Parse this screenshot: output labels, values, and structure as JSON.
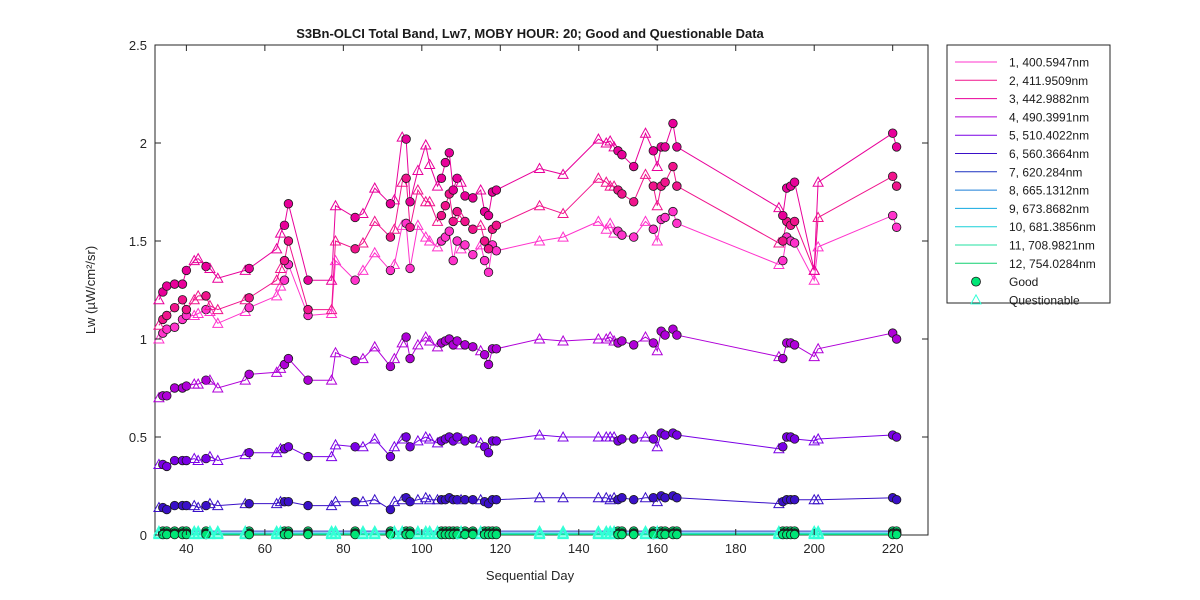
{
  "chart_data": {
    "type": "line",
    "title": "S3Bn-OLCI Total Band,  Lw7, MOBY HOUR: 20;  Good and Questionable Data",
    "xlabel": "Sequential Day",
    "ylabel": "Lw (µW/cm²/sr)",
    "xlim": [
      32,
      229
    ],
    "ylim": [
      0,
      2.5
    ],
    "xticks": [
      40,
      60,
      80,
      100,
      120,
      140,
      160,
      180,
      200,
      220
    ],
    "yticks": [
      0,
      0.5,
      1,
      1.5,
      2,
      2.5
    ],
    "ytick_labels": [
      "0",
      "0.5",
      "1",
      "1.5",
      "2",
      "2.5"
    ],
    "grid": false,
    "legend_position": "outside-right",
    "marker_legend": [
      {
        "label": "Good",
        "marker": "circle",
        "color": "#00e676"
      },
      {
        "label": "Questionable",
        "marker": "triangle",
        "color": "#33ffd6"
      }
    ],
    "x": [
      33,
      34,
      35,
      37,
      39,
      40,
      42,
      43,
      45,
      46,
      48,
      55,
      56,
      63,
      64,
      65,
      66,
      71,
      77,
      78,
      83,
      85,
      88,
      92,
      93,
      95,
      96,
      97,
      99,
      101,
      102,
      104,
      105,
      106,
      107,
      108,
      109,
      110,
      111,
      113,
      115,
      116,
      117,
      118,
      119,
      130,
      136,
      145,
      147,
      148,
      149,
      150,
      151,
      154,
      157,
      159,
      160,
      161,
      162,
      164,
      165,
      191,
      192,
      193,
      194,
      195,
      200,
      201,
      220,
      221
    ],
    "series": [
      {
        "name": "1, 400.5947nm",
        "color": "#ff33cc",
        "values": [
          1.0,
          1.03,
          1.05,
          1.06,
          1.1,
          1.12,
          1.12,
          1.13,
          1.15,
          1.14,
          1.08,
          1.14,
          1.16,
          1.22,
          1.27,
          1.3,
          1.38,
          1.12,
          1.13,
          1.4,
          1.3,
          1.35,
          1.44,
          1.35,
          1.38,
          1.58,
          1.59,
          1.36,
          1.58,
          1.52,
          1.5,
          1.47,
          1.5,
          1.52,
          1.55,
          1.4,
          1.5,
          1.46,
          1.48,
          1.43,
          1.48,
          1.4,
          1.34,
          1.48,
          1.45,
          1.5,
          1.52,
          1.6,
          1.56,
          1.59,
          1.54,
          1.55,
          1.53,
          1.52,
          1.6,
          1.56,
          1.5,
          1.61,
          1.62,
          1.65,
          1.59,
          1.38,
          1.4,
          1.52,
          1.5,
          1.49,
          1.3,
          1.47,
          1.63,
          1.57
        ]
      },
      {
        "name": "2, 411.9509nm",
        "color": "#f0148c",
        "values": [
          1.07,
          1.1,
          1.12,
          1.16,
          1.2,
          1.15,
          1.2,
          1.22,
          1.22,
          1.17,
          1.15,
          1.2,
          1.21,
          1.3,
          1.36,
          1.4,
          1.5,
          1.15,
          1.15,
          1.5,
          1.46,
          1.49,
          1.6,
          1.52,
          1.56,
          1.8,
          1.82,
          1.57,
          1.76,
          1.7,
          1.7,
          1.6,
          1.63,
          1.68,
          1.74,
          1.6,
          1.65,
          1.62,
          1.6,
          1.56,
          1.58,
          1.5,
          1.46,
          1.56,
          1.58,
          1.68,
          1.64,
          1.82,
          1.8,
          1.78,
          1.78,
          1.76,
          1.74,
          1.7,
          1.84,
          1.78,
          1.68,
          1.78,
          1.8,
          1.88,
          1.78,
          1.49,
          1.5,
          1.6,
          1.58,
          1.6,
          1.35,
          1.62,
          1.83,
          1.78
        ]
      },
      {
        "name": "3, 442.9882nm",
        "color": "#e8009a",
        "values": [
          1.2,
          1.24,
          1.27,
          1.28,
          1.28,
          1.35,
          1.4,
          1.41,
          1.37,
          1.36,
          1.31,
          1.35,
          1.36,
          1.46,
          1.54,
          1.58,
          1.69,
          1.3,
          1.3,
          1.68,
          1.62,
          1.64,
          1.77,
          1.69,
          1.71,
          2.03,
          2.02,
          1.7,
          1.86,
          1.99,
          1.89,
          1.78,
          1.82,
          1.9,
          1.95,
          1.76,
          1.82,
          1.8,
          1.73,
          1.72,
          1.76,
          1.65,
          1.63,
          1.75,
          1.76,
          1.87,
          1.84,
          2.02,
          2.0,
          2.01,
          1.98,
          1.96,
          1.94,
          1.88,
          2.05,
          1.96,
          1.88,
          1.98,
          1.98,
          2.1,
          1.98,
          1.67,
          1.63,
          1.77,
          1.78,
          1.8,
          1.35,
          1.8,
          2.05,
          1.98
        ]
      },
      {
        "name": "4, 490.3991nm",
        "color": "#b000d8",
        "values": [
          0.7,
          0.71,
          0.71,
          0.75,
          0.75,
          0.76,
          0.77,
          0.77,
          0.79,
          0.79,
          0.75,
          0.79,
          0.82,
          0.83,
          0.85,
          0.87,
          0.9,
          0.79,
          0.79,
          0.93,
          0.89,
          0.9,
          0.96,
          0.86,
          0.9,
          0.98,
          1.01,
          0.9,
          0.97,
          1.01,
          0.99,
          0.96,
          0.98,
          0.99,
          1.0,
          0.97,
          0.99,
          0.97,
          0.97,
          0.96,
          0.94,
          0.92,
          0.87,
          0.95,
          0.95,
          1.0,
          0.99,
          1.0,
          1.0,
          1.01,
          0.99,
          0.98,
          0.99,
          0.97,
          1.01,
          0.98,
          0.94,
          1.04,
          1.02,
          1.05,
          1.02,
          0.91,
          0.9,
          0.98,
          0.98,
          0.97,
          0.91,
          0.95,
          1.03,
          1.0
        ]
      },
      {
        "name": "5, 510.4022nm",
        "color": "#7a00e6",
        "values": [
          0.36,
          0.36,
          0.35,
          0.38,
          0.38,
          0.38,
          0.39,
          0.38,
          0.39,
          0.4,
          0.38,
          0.41,
          0.42,
          0.42,
          0.44,
          0.44,
          0.45,
          0.4,
          0.4,
          0.46,
          0.45,
          0.45,
          0.49,
          0.4,
          0.45,
          0.49,
          0.5,
          0.45,
          0.48,
          0.5,
          0.49,
          0.47,
          0.48,
          0.49,
          0.5,
          0.48,
          0.5,
          0.49,
          0.48,
          0.49,
          0.47,
          0.45,
          0.42,
          0.48,
          0.48,
          0.51,
          0.5,
          0.5,
          0.5,
          0.5,
          0.5,
          0.48,
          0.49,
          0.49,
          0.5,
          0.49,
          0.45,
          0.52,
          0.51,
          0.52,
          0.51,
          0.44,
          0.45,
          0.5,
          0.5,
          0.49,
          0.48,
          0.49,
          0.51,
          0.5
        ]
      },
      {
        "name": "6, 560.3664nm",
        "color": "#3a10c8",
        "values": [
          0.14,
          0.14,
          0.13,
          0.15,
          0.15,
          0.15,
          0.15,
          0.14,
          0.15,
          0.16,
          0.15,
          0.16,
          0.16,
          0.16,
          0.17,
          0.17,
          0.17,
          0.15,
          0.15,
          0.17,
          0.17,
          0.17,
          0.18,
          0.13,
          0.17,
          0.18,
          0.19,
          0.17,
          0.18,
          0.19,
          0.18,
          0.18,
          0.18,
          0.18,
          0.19,
          0.18,
          0.18,
          0.18,
          0.18,
          0.18,
          0.18,
          0.17,
          0.16,
          0.18,
          0.18,
          0.19,
          0.19,
          0.19,
          0.19,
          0.18,
          0.19,
          0.18,
          0.19,
          0.18,
          0.19,
          0.19,
          0.17,
          0.2,
          0.19,
          0.2,
          0.19,
          0.16,
          0.17,
          0.18,
          0.18,
          0.18,
          0.18,
          0.18,
          0.19,
          0.18
        ]
      },
      {
        "name": "7,  620.284nm",
        "color": "#1a30c0",
        "values": [
          0.02,
          0.02,
          0.02,
          0.02,
          0.02,
          0.02,
          0.02,
          0.02,
          0.02,
          0.02,
          0.02,
          0.02,
          0.02,
          0.02,
          0.02,
          0.02,
          0.02,
          0.02,
          0.02,
          0.02,
          0.02,
          0.02,
          0.02,
          0.02,
          0.02,
          0.02,
          0.02,
          0.02,
          0.02,
          0.02,
          0.02,
          0.02,
          0.02,
          0.02,
          0.02,
          0.02,
          0.02,
          0.02,
          0.02,
          0.02,
          0.02,
          0.02,
          0.02,
          0.02,
          0.02,
          0.02,
          0.02,
          0.02,
          0.02,
          0.02,
          0.02,
          0.02,
          0.02,
          0.02,
          0.02,
          0.02,
          0.02,
          0.02,
          0.02,
          0.02,
          0.02,
          0.02,
          0.02,
          0.02,
          0.02,
          0.02,
          0.02,
          0.02,
          0.02,
          0.02
        ]
      },
      {
        "name": "8, 665.1312nm",
        "color": "#1a7ed8",
        "values": [
          0.01,
          0.01,
          0.01,
          0.01,
          0.01,
          0.01,
          0.01,
          0.01,
          0.01,
          0.01,
          0.01,
          0.01,
          0.01,
          0.01,
          0.01,
          0.01,
          0.01,
          0.01,
          0.01,
          0.01,
          0.01,
          0.01,
          0.01,
          0.01,
          0.01,
          0.01,
          0.01,
          0.01,
          0.01,
          0.01,
          0.01,
          0.01,
          0.01,
          0.01,
          0.01,
          0.01,
          0.01,
          0.01,
          0.01,
          0.01,
          0.01,
          0.01,
          0.01,
          0.01,
          0.01,
          0.01,
          0.01,
          0.01,
          0.01,
          0.01,
          0.01,
          0.01,
          0.01,
          0.01,
          0.01,
          0.01,
          0.01,
          0.01,
          0.01,
          0.01,
          0.01,
          0.01,
          0.01,
          0.01,
          0.01,
          0.01,
          0.01,
          0.01,
          0.01,
          0.01
        ]
      },
      {
        "name": "9, 673.8682nm",
        "color": "#10a8e0",
        "values": [
          0.01,
          0.01,
          0.01,
          0.01,
          0.01,
          0.01,
          0.01,
          0.01,
          0.01,
          0.01,
          0.01,
          0.01,
          0.01,
          0.01,
          0.01,
          0.01,
          0.01,
          0.01,
          0.01,
          0.01,
          0.01,
          0.01,
          0.01,
          0.01,
          0.01,
          0.01,
          0.01,
          0.01,
          0.01,
          0.01,
          0.01,
          0.01,
          0.01,
          0.01,
          0.01,
          0.01,
          0.01,
          0.01,
          0.01,
          0.01,
          0.01,
          0.01,
          0.01,
          0.01,
          0.01,
          0.01,
          0.01,
          0.01,
          0.01,
          0.01,
          0.01,
          0.01,
          0.01,
          0.01,
          0.01,
          0.01,
          0.01,
          0.01,
          0.01,
          0.01,
          0.01,
          0.01,
          0.01,
          0.01,
          0.01,
          0.01,
          0.01,
          0.01,
          0.01,
          0.01
        ]
      },
      {
        "name": "10, 681.3856nm",
        "color": "#18d0d8",
        "values": [
          0.008,
          0.008,
          0.008,
          0.008,
          0.008,
          0.008,
          0.008,
          0.008,
          0.008,
          0.008,
          0.008,
          0.008,
          0.008,
          0.008,
          0.008,
          0.008,
          0.008,
          0.008,
          0.008,
          0.008,
          0.008,
          0.008,
          0.008,
          0.008,
          0.008,
          0.008,
          0.008,
          0.008,
          0.008,
          0.008,
          0.008,
          0.008,
          0.008,
          0.008,
          0.008,
          0.008,
          0.008,
          0.008,
          0.008,
          0.008,
          0.008,
          0.008,
          0.008,
          0.008,
          0.008,
          0.008,
          0.008,
          0.008,
          0.008,
          0.008,
          0.008,
          0.008,
          0.008,
          0.008,
          0.008,
          0.008,
          0.008,
          0.008,
          0.008,
          0.008,
          0.008,
          0.008,
          0.008,
          0.008,
          0.008,
          0.008,
          0.008,
          0.008,
          0.008,
          0.008
        ]
      },
      {
        "name": "11, 708.9821nm",
        "color": "#20e0a0",
        "values": [
          0.004,
          0.004,
          0.004,
          0.004,
          0.004,
          0.004,
          0.004,
          0.004,
          0.004,
          0.004,
          0.004,
          0.004,
          0.004,
          0.004,
          0.004,
          0.004,
          0.004,
          0.004,
          0.004,
          0.004,
          0.004,
          0.004,
          0.004,
          0.004,
          0.004,
          0.004,
          0.004,
          0.004,
          0.004,
          0.004,
          0.004,
          0.004,
          0.004,
          0.004,
          0.004,
          0.004,
          0.004,
          0.004,
          0.004,
          0.004,
          0.004,
          0.004,
          0.004,
          0.004,
          0.004,
          0.004,
          0.004,
          0.004,
          0.004,
          0.004,
          0.004,
          0.004,
          0.004,
          0.004,
          0.004,
          0.004,
          0.004,
          0.004,
          0.004,
          0.004,
          0.004,
          0.004,
          0.004,
          0.004,
          0.004,
          0.004,
          0.004,
          0.004,
          0.004,
          0.004
        ]
      },
      {
        "name": "12, 754.0284nm",
        "color": "#10d070",
        "values": [
          0.002,
          0.002,
          0.002,
          0.002,
          0.002,
          0.002,
          0.002,
          0.002,
          0.002,
          0.002,
          0.002,
          0.002,
          0.002,
          0.002,
          0.002,
          0.002,
          0.002,
          0.002,
          0.002,
          0.002,
          0.002,
          0.002,
          0.002,
          0.002,
          0.002,
          0.002,
          0.002,
          0.002,
          0.002,
          0.002,
          0.002,
          0.002,
          0.002,
          0.002,
          0.002,
          0.002,
          0.002,
          0.002,
          0.002,
          0.002,
          0.002,
          0.002,
          0.002,
          0.002,
          0.002,
          0.002,
          0.002,
          0.002,
          0.002,
          0.002,
          0.002,
          0.002,
          0.002,
          0.002,
          0.002,
          0.002,
          0.002,
          0.002,
          0.002,
          0.002,
          0.002,
          0.002,
          0.002,
          0.002,
          0.002,
          0.002,
          0.002,
          0.002,
          0.002,
          0.002
        ]
      }
    ],
    "questionable_x": [
      33,
      42,
      43,
      46,
      48,
      55,
      63,
      64,
      77,
      78,
      85,
      88,
      93,
      95,
      99,
      101,
      102,
      104,
      110,
      115,
      130,
      136,
      145,
      147,
      148,
      149,
      157,
      160,
      191,
      200,
      201
    ]
  }
}
